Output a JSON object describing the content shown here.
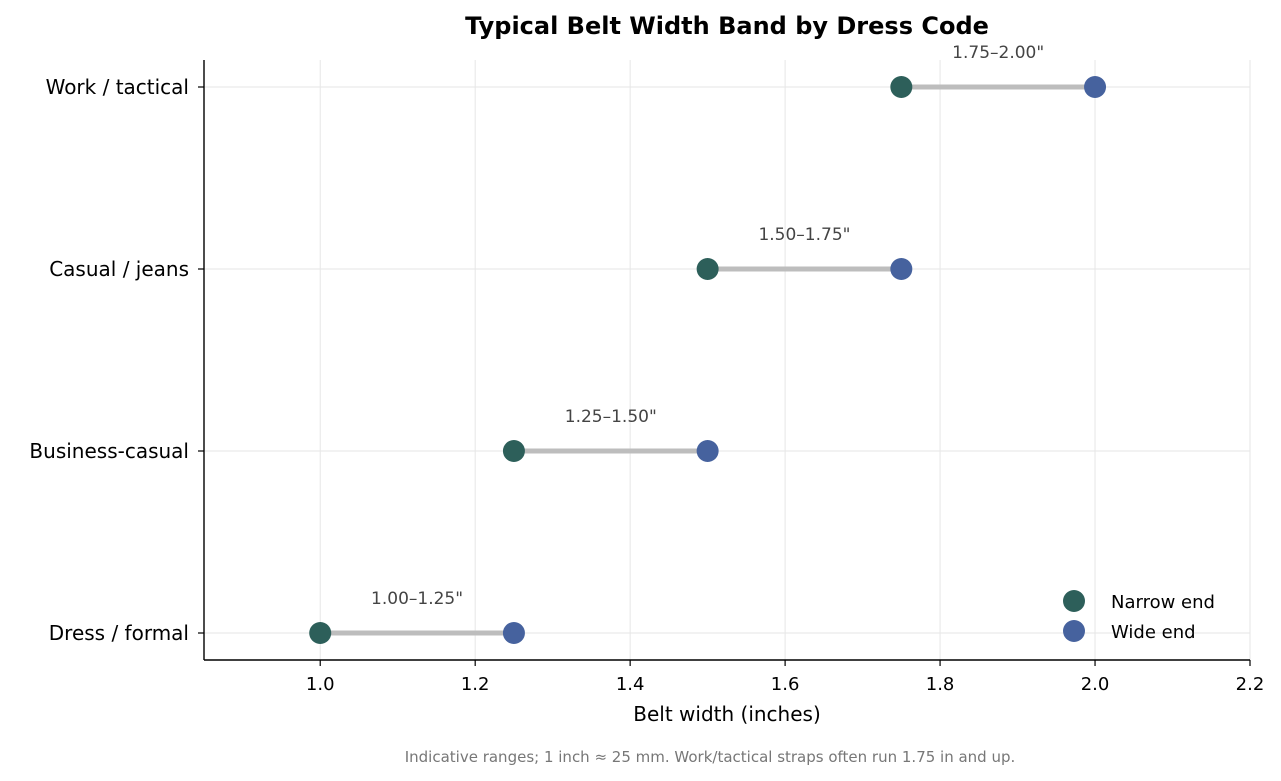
{
  "chart_data": {
    "type": "dumbbell",
    "title": "Typical Belt Width Band by Dress Code",
    "xlabel": "Belt width (inches)",
    "xlim": [
      0.85,
      2.2
    ],
    "xticks": [
      "1.0",
      "1.2",
      "1.4",
      "1.6",
      "1.8",
      "2.0",
      "2.2"
    ],
    "grid": true,
    "legend_position": "bottom-right",
    "categories": [
      "Work / tactical",
      "Casual / jeans",
      "Business-casual",
      "Dress / formal"
    ],
    "series": [
      {
        "name": "Narrow end",
        "color": "#2d5f5a",
        "values": [
          1.75,
          1.5,
          1.25,
          1.0
        ]
      },
      {
        "name": "Wide end",
        "color": "#46629e",
        "values": [
          2.0,
          1.75,
          1.5,
          1.25
        ]
      }
    ],
    "range_labels": [
      "1.75–2.00\"",
      "1.50–1.75\"",
      "1.25–1.50\"",
      "1.00–1.25\""
    ],
    "connector_color": "#bdbdbd",
    "footnote": "Indicative ranges; 1 inch ≈ 25 mm. Work/tactical straps often run 1.75 in and up."
  }
}
